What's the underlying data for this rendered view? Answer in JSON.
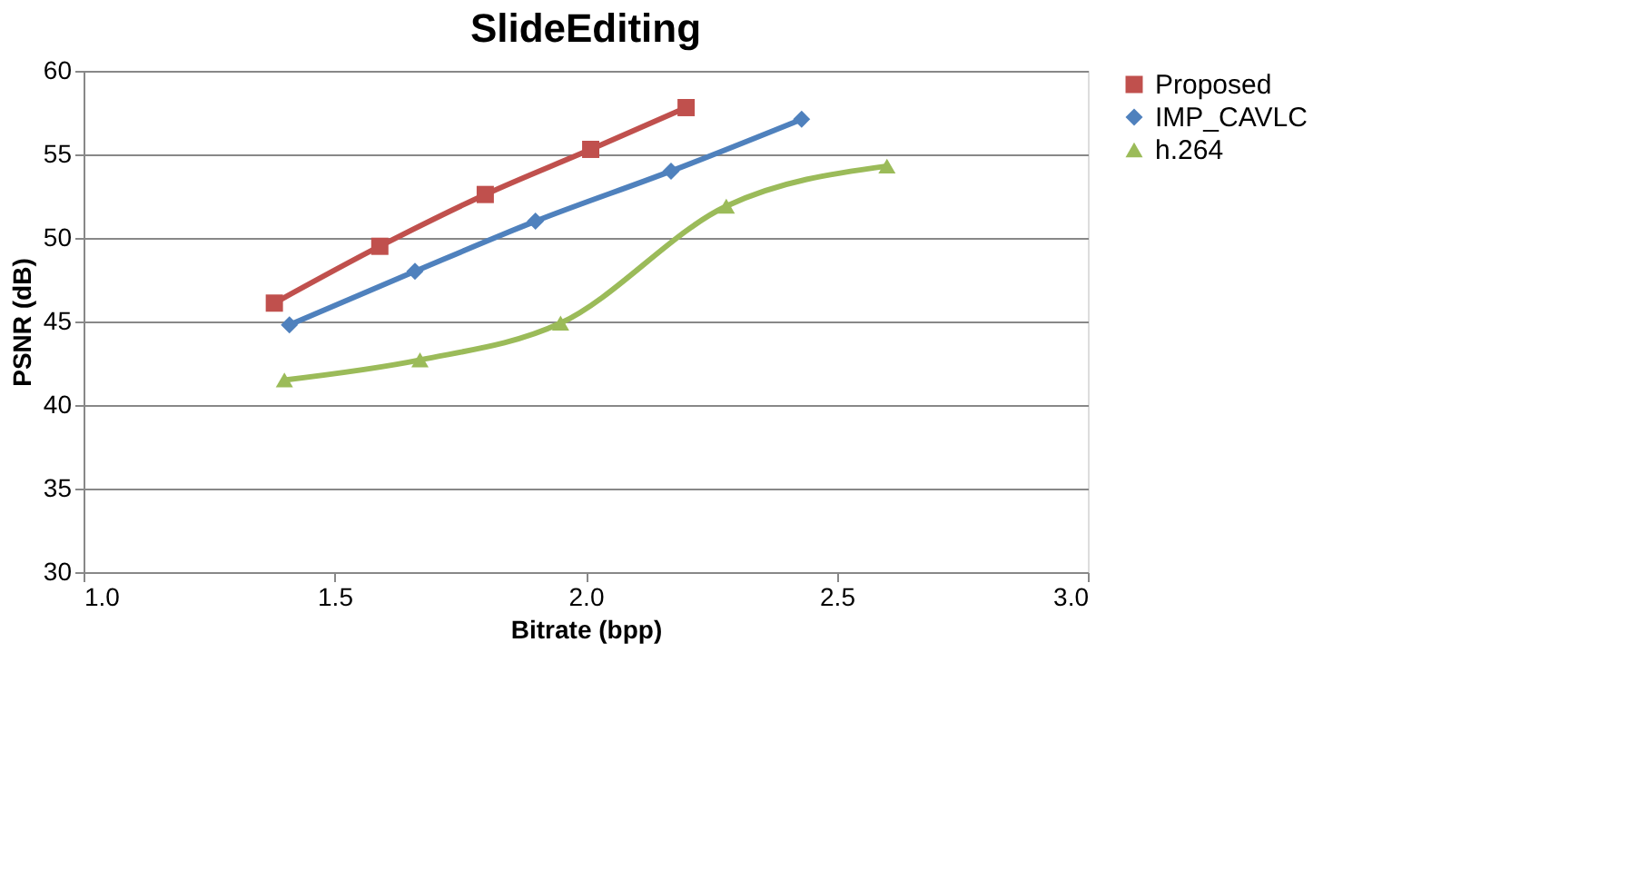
{
  "chart_data": {
    "type": "line",
    "title": "SlideEditing",
    "xlabel": "Bitrate (bpp)",
    "ylabel": "PSNR (dB)",
    "xlim": [
      1.0,
      3.0
    ],
    "xticks": [
      {
        "value": 1.0,
        "label": "1.0"
      },
      {
        "value": 1.5,
        "label": "1.5"
      },
      {
        "value": 2.0,
        "label": "2.0"
      },
      {
        "value": 2.5,
        "label": "2.5"
      },
      {
        "value": 3.0,
        "label": "3.0"
      }
    ],
    "ylim": [
      30,
      60
    ],
    "yticks": [
      30,
      35,
      40,
      45,
      50,
      55,
      60
    ],
    "grid": "y",
    "legend": "right",
    "line_style": "solid",
    "series": [
      {
        "name": "Proposed",
        "color": "#c0504d",
        "marker": "square",
        "x": [
          1.38,
          1.59,
          1.8,
          2.01,
          2.2
        ],
        "values": [
          46.1,
          49.5,
          52.6,
          55.3,
          57.8
        ]
      },
      {
        "name": "IMP_CAVLC",
        "color": "#4f81bd",
        "marker": "diamond",
        "x": [
          1.41,
          1.66,
          1.9,
          2.17,
          2.43
        ],
        "values": [
          44.8,
          48.0,
          51.0,
          54.0,
          57.1
        ]
      },
      {
        "name": "h.264",
        "color": "#9bbb59",
        "marker": "triangle",
        "x": [
          1.4,
          1.67,
          1.95,
          2.28,
          2.6
        ],
        "values": [
          41.5,
          42.7,
          44.9,
          51.9,
          54.3
        ]
      }
    ]
  }
}
